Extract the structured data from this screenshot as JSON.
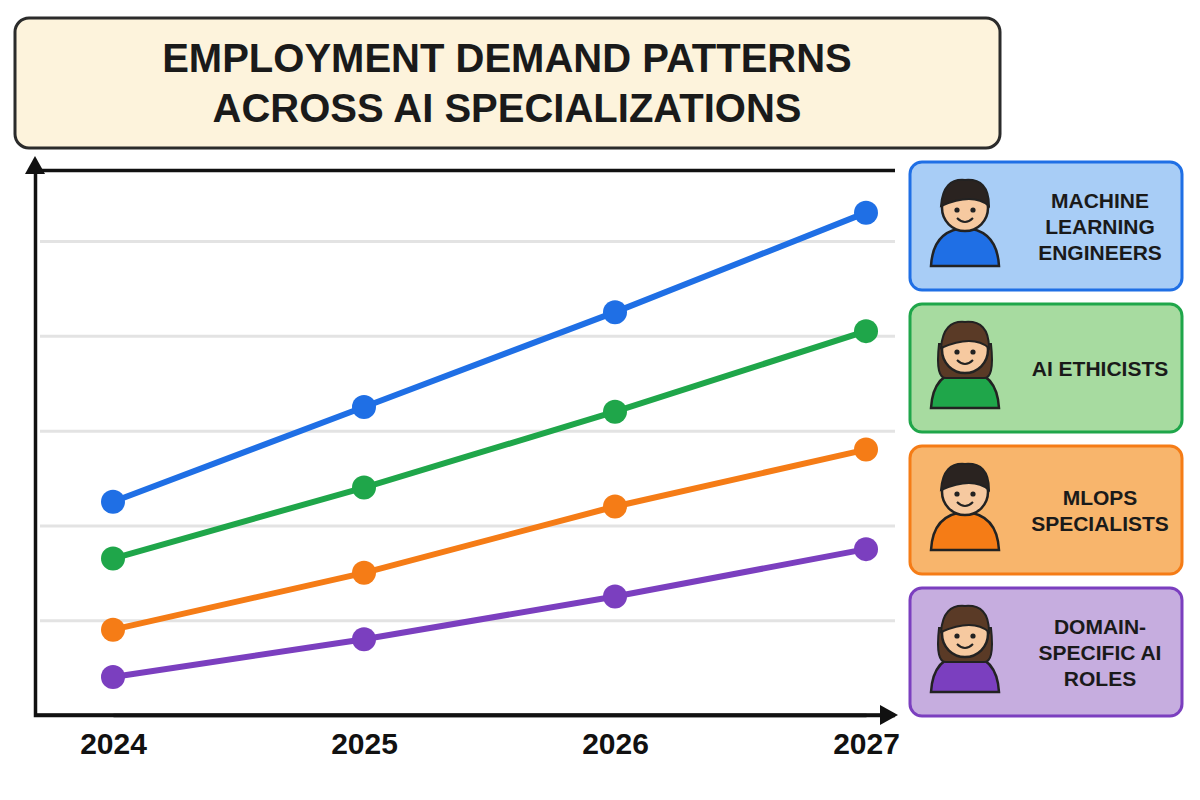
{
  "chart_data": {
    "type": "line",
    "title": "EMPLOYMENT DEMAND PATTERNS ACROSS AI SPECIALIZATIONS",
    "categories": [
      "2024",
      "2025",
      "2026",
      "2027"
    ],
    "series": [
      {
        "name": "MACHINE LEARNING ENGINEERS",
        "color": "#1f6fe5",
        "values": [
          45,
          65,
          85,
          106
        ]
      },
      {
        "name": "AI ETHICISTS",
        "color": "#1fa64a",
        "values": [
          33,
          48,
          64,
          81
        ]
      },
      {
        "name": "MLOPS SPECIALISTS",
        "color": "#f57c16",
        "values": [
          18,
          30,
          44,
          56
        ]
      },
      {
        "name": "DOMAIN-SPECIFIC AI ROLES",
        "color": "#7b3fbf",
        "values": [
          8,
          16,
          25,
          35
        ]
      }
    ],
    "ylim": [
      0,
      115
    ],
    "yticks": [
      20,
      40,
      60,
      80,
      100
    ],
    "grid": true,
    "marker": "circle",
    "legend": "right",
    "tick_labels": "x"
  }
}
